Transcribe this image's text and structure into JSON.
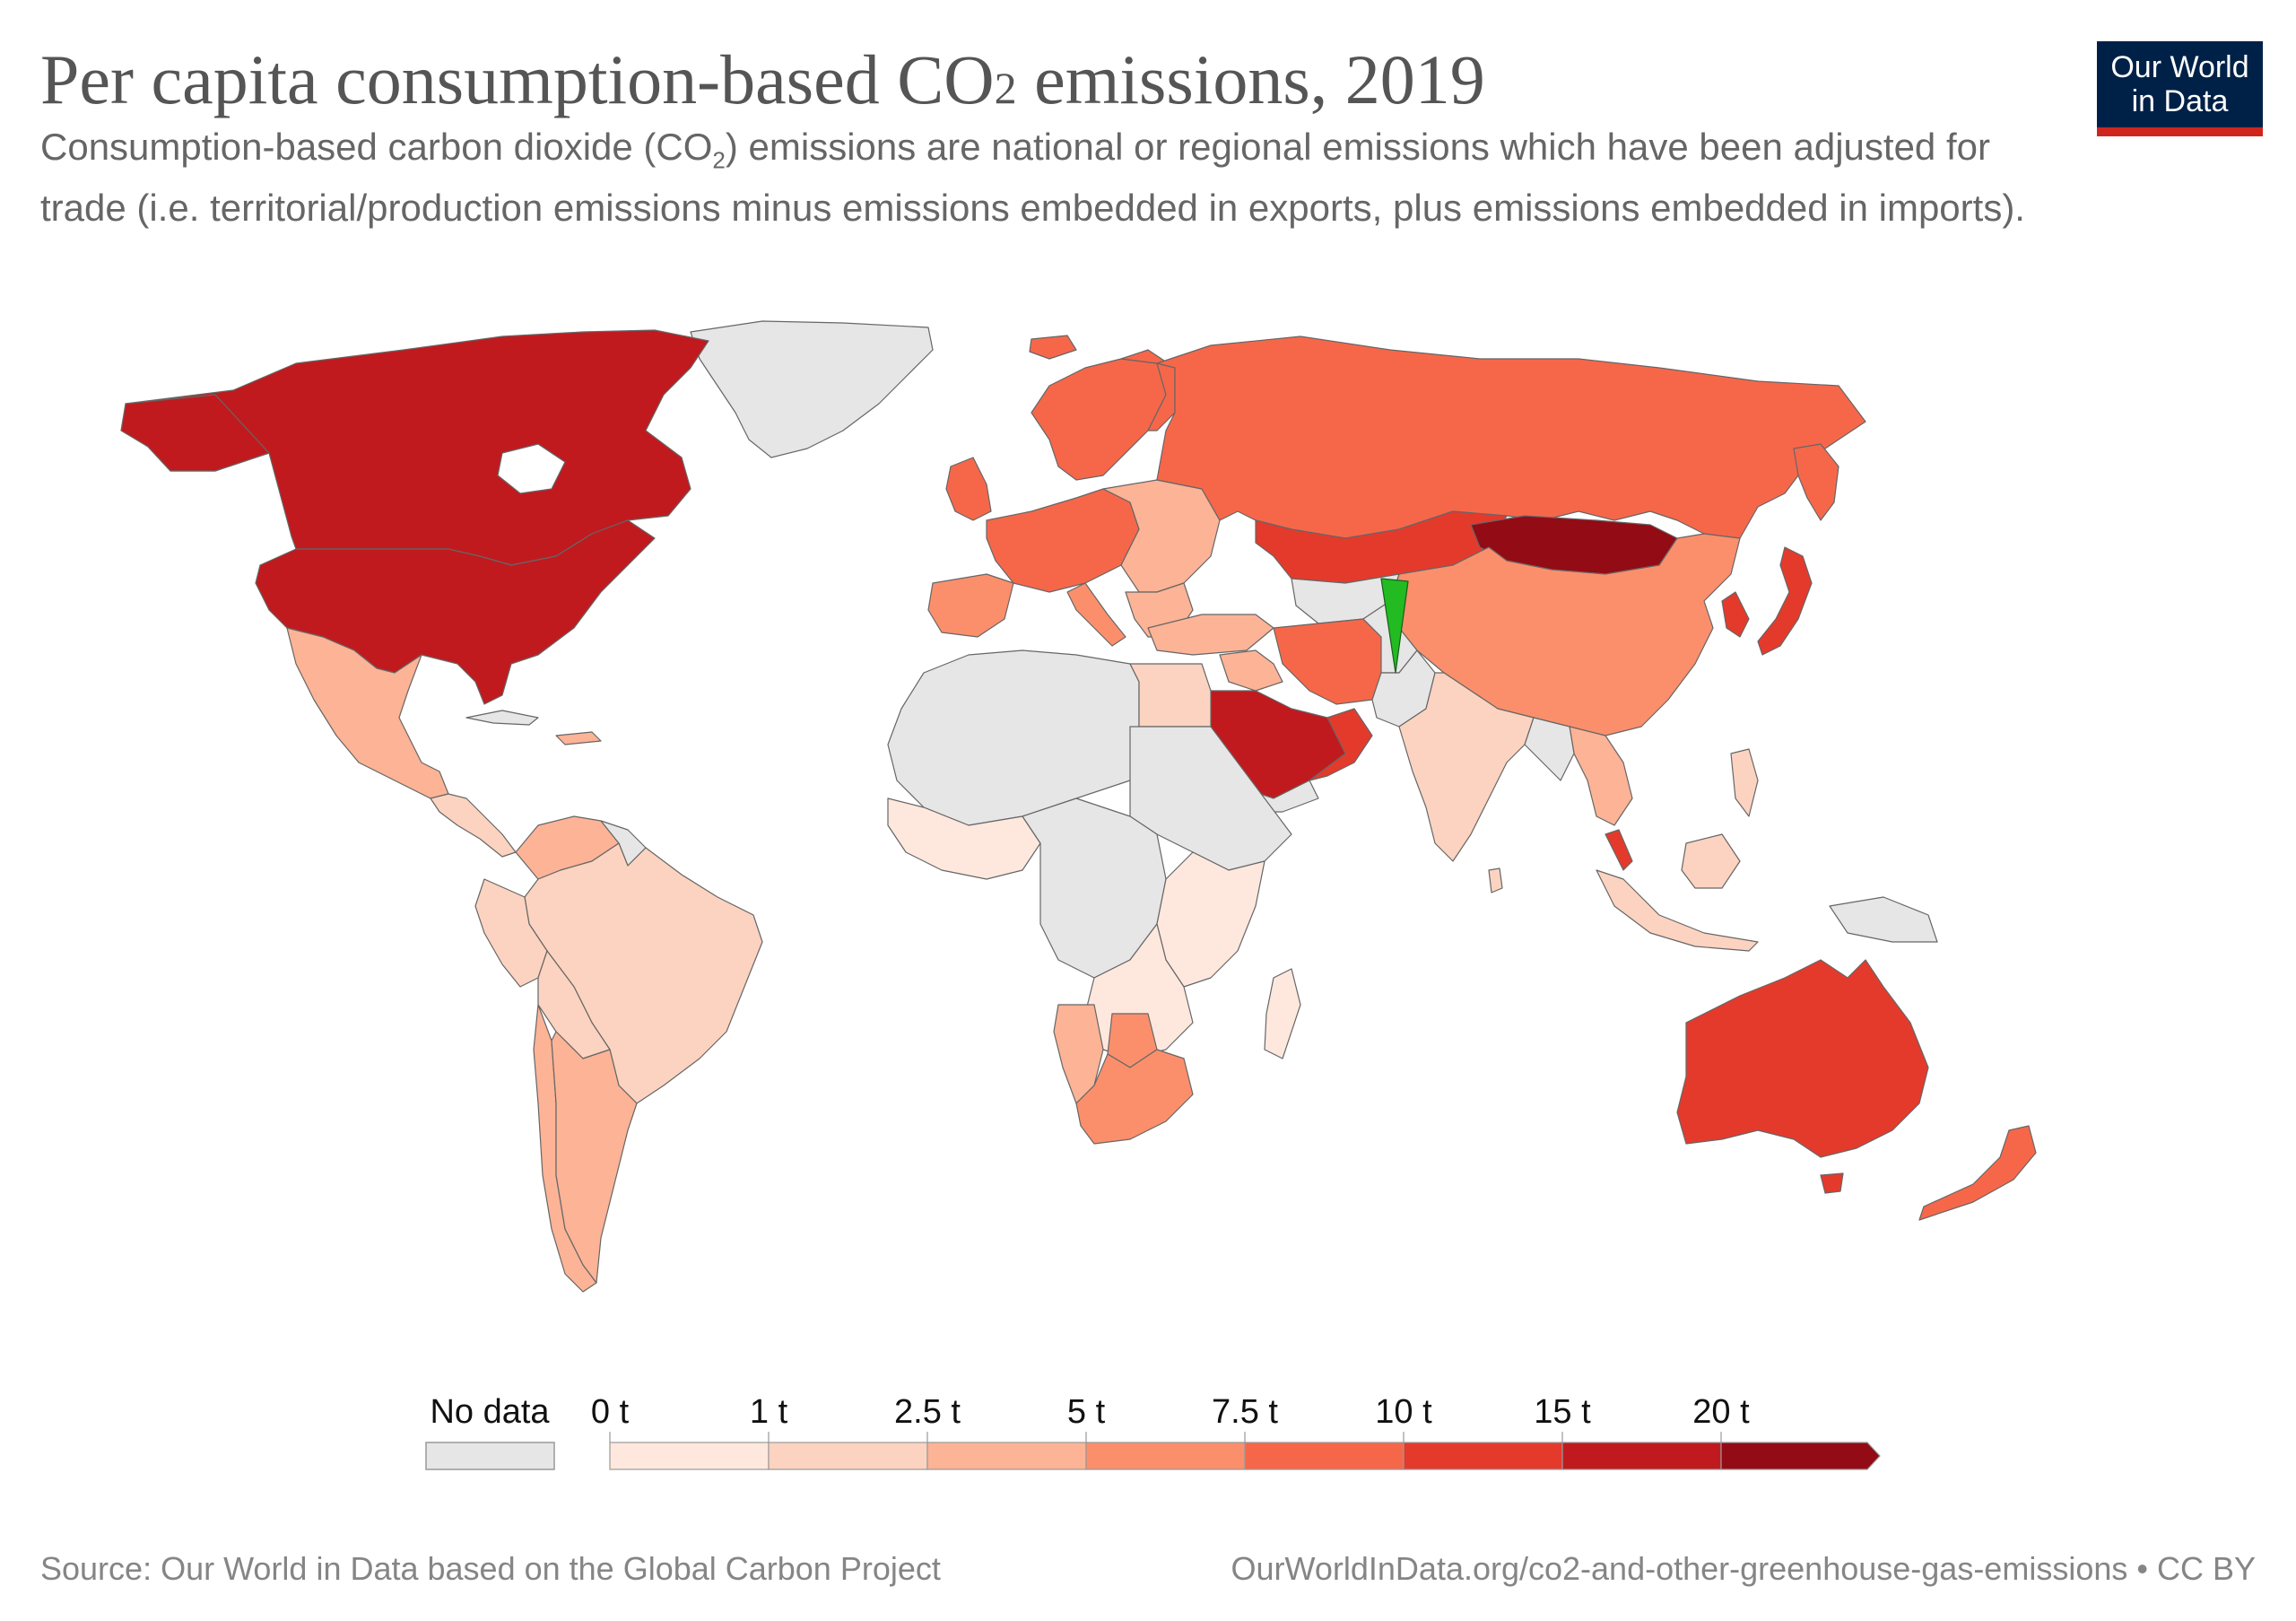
{
  "header": {
    "title_main": "Per capita consumption-based CO",
    "title_sub": "2",
    "title_end": " emissions, 2019",
    "subtitle_1": "Consumption-based carbon dioxide (CO",
    "subtitle_sub": "2",
    "subtitle_2": ") emissions are national or regional emissions which have been adjusted for trade (i.e. territorial/production emissions minus emissions embedded in exports, plus emissions embedded in imports)."
  },
  "logo": {
    "line1": "Our World",
    "line2": "in Data",
    "bg": "#002147",
    "accent": "#ce261e"
  },
  "legend": {
    "no_data_label": "No data",
    "no_data_color": "#e6e6e6",
    "thresholds": [
      "0 t",
      "1 t",
      "2.5 t",
      "5 t",
      "7.5 t",
      "10 t",
      "15 t",
      "20 t"
    ],
    "colors": [
      "#fee8de",
      "#fcd3c0",
      "#fcb396",
      "#fb8f6c",
      "#f6674a",
      "#e43a2c",
      "#c01a1e",
      "#930b14"
    ]
  },
  "map_data": {
    "Canada": "15-20 t",
    "United States": "15-20 t",
    "Mexico": "2.5-5 t",
    "Brazil": "1-2.5 t",
    "Argentina": "2.5-5 t",
    "Chile": "2.5-5 t",
    "Greenland": "No data",
    "Russia": "7.5-10 t",
    "Kazakhstan": "10-15 t",
    "Mongolia": "20+ t",
    "China": "5-7.5 t",
    "India": "1-2.5 t",
    "Saudi Arabia": "15-20 t",
    "Iran": "7.5-10 t",
    "Japan": "10-15 t",
    "Australia": "10-15 t",
    "New Zealand": "7.5-10 t",
    "South Africa": "5-7.5 t",
    "Egypt": "1-2.5 t",
    "Nigeria": "0-1 t"
  },
  "footer": {
    "source": "Source: Our World in Data based on the Global Carbon Project",
    "url": "OurWorldInData.org/co2-and-other-greenhouse-gas-emissions • CC BY"
  }
}
